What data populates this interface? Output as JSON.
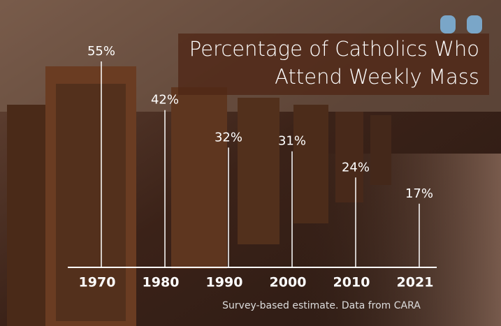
{
  "chart_data": {
    "type": "lollipop",
    "title": "Percentage of Catholics Who Attend Weekly Mass",
    "categories": [
      "1970",
      "1980",
      "1990",
      "2000",
      "2010",
      "2021"
    ],
    "values": [
      55,
      42,
      32,
      31,
      24,
      17
    ],
    "value_labels": [
      "55%",
      "42%",
      "32%",
      "31%",
      "24%",
      "17%"
    ],
    "color": "#ffffff",
    "note": "Survey-based estimate. Data from CARA"
  }
}
